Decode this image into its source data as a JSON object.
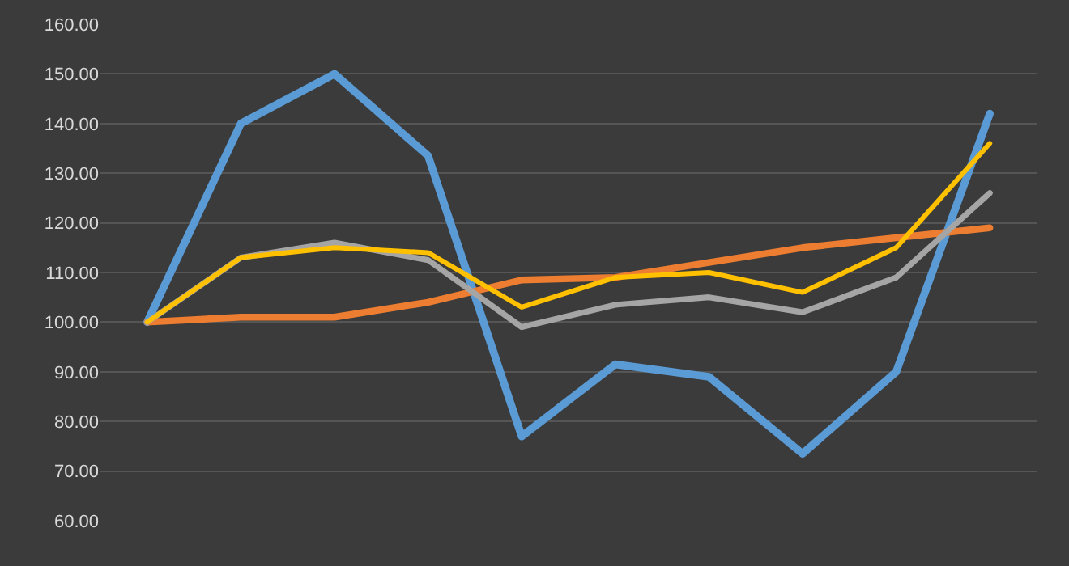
{
  "chart_data": {
    "type": "line",
    "categories": [
      null,
      null,
      null,
      null,
      null,
      null,
      null,
      null,
      null,
      null
    ],
    "series": [
      {
        "color": "#5b9bd5",
        "values": [
          100,
          140,
          150,
          133.5,
          77,
          91.5,
          89,
          73.5,
          90,
          142
        ]
      },
      {
        "color": "#ed7d31",
        "values": [
          100,
          101,
          101,
          104,
          108.5,
          109,
          112,
          115,
          117,
          119
        ]
      },
      {
        "color": "#a5a5a5",
        "values": [
          100,
          113,
          116,
          112.5,
          99,
          103.5,
          105,
          102,
          109,
          126
        ]
      },
      {
        "color": "#ffc000",
        "values": [
          100,
          113,
          115,
          114,
          103,
          109,
          110,
          106,
          115,
          136
        ]
      }
    ],
    "ylim": [
      60,
      160
    ],
    "yticks": [
      {
        "value": 60,
        "label": "60.00"
      },
      {
        "value": 70,
        "label": "70.00"
      },
      {
        "value": 80,
        "label": "80.00"
      },
      {
        "value": 90,
        "label": "90.00"
      },
      {
        "value": 100,
        "label": "100.00"
      },
      {
        "value": 110,
        "label": "110.00"
      },
      {
        "value": 120,
        "label": "120.00"
      },
      {
        "value": 130,
        "label": "130.00"
      },
      {
        "value": 140,
        "label": "140.00"
      },
      {
        "value": 150,
        "label": "150.00"
      },
      {
        "value": 160,
        "label": "160.00"
      }
    ],
    "grid": "y",
    "tick_labels": "y",
    "marker": "none",
    "line_style": "solid"
  }
}
